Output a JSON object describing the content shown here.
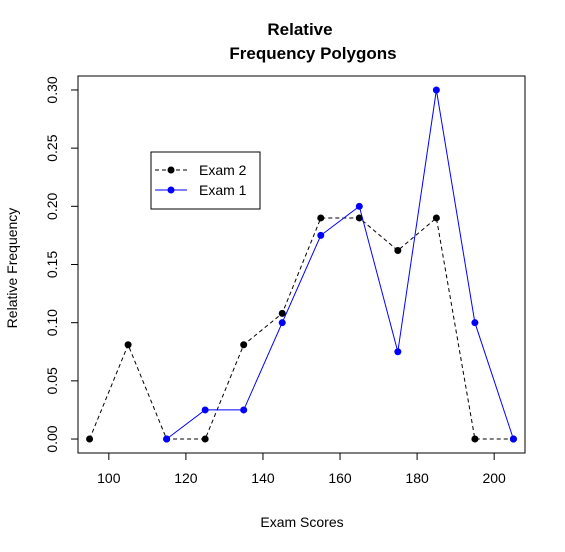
{
  "chart_data": {
    "type": "line",
    "title_line1": "Relative",
    "title_line2": "Frequency Polygons",
    "xlabel": "Exam Scores",
    "ylabel": "Relative Frequency",
    "xlim": [
      92,
      208
    ],
    "ylim": [
      -0.012,
      0.312
    ],
    "xticks": [
      100,
      120,
      140,
      160,
      180,
      200
    ],
    "yticks": [
      "0.00",
      "0.05",
      "0.10",
      "0.15",
      "0.20",
      "0.25",
      "0.30"
    ],
    "grid": false,
    "legend_position": "top-left",
    "series": [
      {
        "name": "Exam 2",
        "color": "#000000",
        "line_style": "dashed",
        "x": [
          95,
          105,
          115,
          125,
          135,
          145,
          155,
          165,
          175,
          185,
          195,
          205
        ],
        "y": [
          0.0,
          0.081,
          0.0,
          0.0,
          0.081,
          0.108,
          0.19,
          0.19,
          0.162,
          0.19,
          0.0,
          0.0
        ]
      },
      {
        "name": "Exam 1",
        "color": "#0000ff",
        "line_style": "solid",
        "x": [
          115,
          125,
          135,
          145,
          155,
          165,
          175,
          185,
          195,
          205
        ],
        "y": [
          0.0,
          0.025,
          0.025,
          0.1,
          0.175,
          0.2,
          0.075,
          0.3,
          0.1,
          0.0
        ]
      }
    ]
  }
}
